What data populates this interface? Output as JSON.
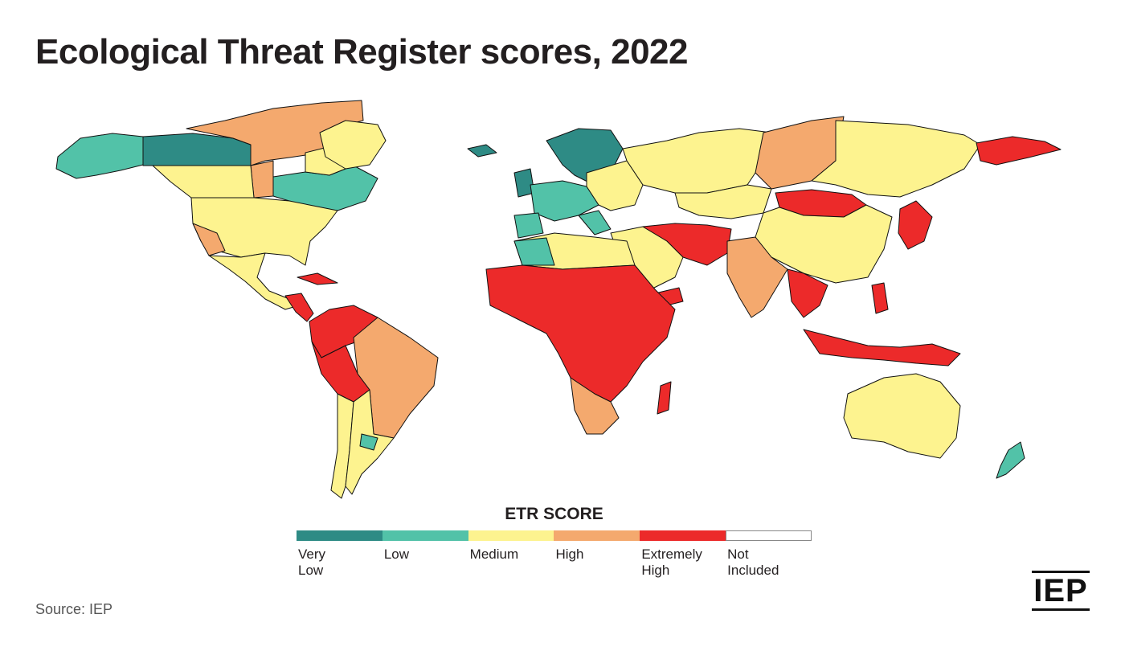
{
  "title": "Ecological Threat Register scores, 2022",
  "legend": {
    "title": "ETR SCORE",
    "items": [
      {
        "label": "Very\nLow",
        "color": "#2e8b85"
      },
      {
        "label": "Low",
        "color": "#52c2a8"
      },
      {
        "label": "Medium",
        "color": "#fdf38f"
      },
      {
        "label": "High",
        "color": "#f4a96e"
      },
      {
        "label": "Extremely\nHigh",
        "color": "#ec2a2a"
      },
      {
        "label": "Not\nIncluded",
        "color": "#ffffff"
      }
    ]
  },
  "source": "Source: IEP",
  "logo_text": "IEP"
}
